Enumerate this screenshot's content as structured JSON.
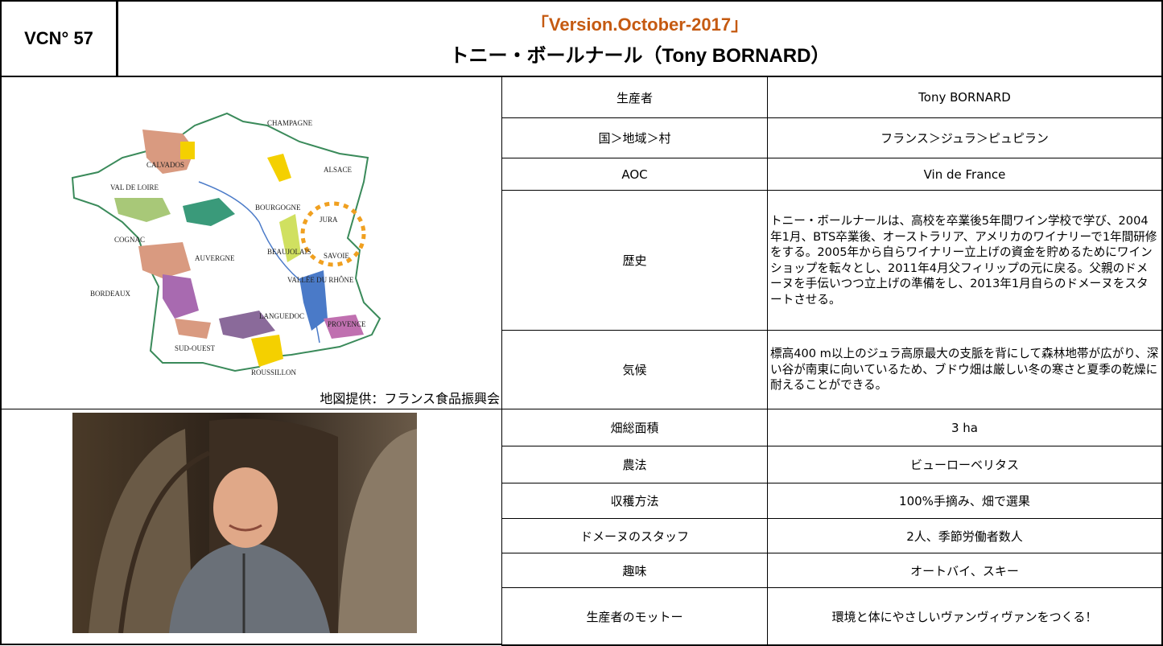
{
  "header": {
    "code": "VCN° 57",
    "version": "「Version.October-2017」",
    "title": "トニー・ボールナール（Tony BORNARD）"
  },
  "map": {
    "labels": [
      "CHAMPAGNE",
      "CALVADOS",
      "ALSACE",
      "VAL DE LOIRE",
      "BOURGOGNE",
      "JURA",
      "SAVOIE",
      "BEAUJOLAIS",
      "COGNAC",
      "AUVERGNE",
      "BORDEAUX",
      "VALLÉE DU RHÔNE",
      "LANGUEDOC",
      "PROVENCE",
      "SUD-OUEST",
      "ROUSSILLON"
    ],
    "caption": "地図提供：フランス食品振興会"
  },
  "table": {
    "rows": [
      [
        "生産者",
        "Tony BORNARD"
      ],
      [
        "国＞地域＞村",
        "フランス＞ジュラ＞ピュピラン"
      ],
      [
        "AOC",
        "Vin de France"
      ],
      [
        "歴史",
        "トニー・ボールナールは、高校を卒業後5年間ワイン学校で学び、2004年1月、BTS卒業後、オーストラリア、アメリカのワイナリーで1年間研修をする。2005年から自らワイナリー立上げの資金を貯めるためにワインショップを転々とし、2011年4月父フィリップの元に戻る。父親のドメーヌを手伝いつつ立上げの準備をし、2013年1月自らのドメーヌをスタートさせる。"
      ],
      [
        "気候",
        "標高400 m以上のジュラ高原最大の支脈を背にして森林地帯が広がり、深い谷が南東に向いているため、ブドウ畑は厳しい冬の寒さと夏季の乾燥に耐えることができる。"
      ],
      [
        "畑総面積",
        "3 ha"
      ],
      [
        "農法",
        "ビューローベリタス"
      ],
      [
        "収穫方法",
        "100%手摘み、畑で選果"
      ],
      [
        "ドメーヌのスタッフ",
        "2人、季節労働者数人"
      ],
      [
        "趣味",
        "オートバイ、スキー"
      ],
      [
        "生産者のモットー",
        "環境と体にやさしいヴァンヴィヴァンをつくる！"
      ]
    ]
  }
}
